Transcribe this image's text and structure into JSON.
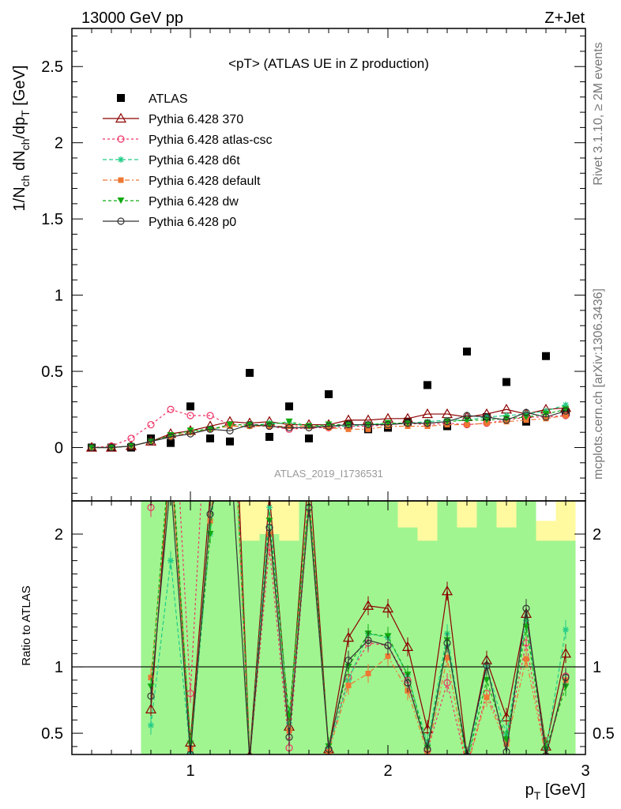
{
  "header": {
    "left": "13000 GeV pp",
    "right": "Z+Jet",
    "title": "<pT> (ATLAS UE in Z production)",
    "rivet": "Rivet 3.1.10, ≥ 2M events",
    "mcplots": "mcplots.cern.ch [arXiv:1306.3436]",
    "analysis": "ATLAS_2019_I1736531"
  },
  "chart_data": [
    {
      "type": "line",
      "ylabel": "1/N_ch dN_ch/dp_T [GeV]",
      "xlabel": "p_T [GeV]",
      "xlim": [
        0.4,
        3.0
      ],
      "ylim": [
        -0.35,
        2.75
      ],
      "yticks": [
        "0",
        "0.5",
        "1",
        "1.5",
        "2",
        "2.5"
      ],
      "legend_position": "top-left",
      "x": [
        0.5,
        0.6,
        0.7,
        0.8,
        0.9,
        1.0,
        1.1,
        1.2,
        1.3,
        1.4,
        1.5,
        1.6,
        1.7,
        1.8,
        1.9,
        2.0,
        2.1,
        2.2,
        2.3,
        2.4,
        2.5,
        2.6,
        2.7,
        2.8,
        2.9
      ],
      "series": [
        {
          "name": "ATLAS",
          "color": "#000000",
          "marker": "square",
          "dash": "none",
          "values": [
            0.0,
            0.0,
            0.0,
            0.06,
            0.03,
            0.27,
            0.06,
            0.04,
            0.49,
            0.07,
            0.27,
            0.06,
            0.35,
            0.15,
            0.12,
            0.13,
            0.17,
            0.41,
            0.14,
            0.63,
            0.2,
            0.43,
            0.17,
            0.6,
            0.23
          ]
        },
        {
          "name": "Pythia 6.428 370",
          "color": "#8b0000",
          "marker": "triangle",
          "dash": "none",
          "values": [
            0.0,
            0.0,
            0.01,
            0.04,
            0.09,
            0.11,
            0.14,
            0.17,
            0.16,
            0.17,
            0.15,
            0.15,
            0.15,
            0.18,
            0.18,
            0.19,
            0.19,
            0.22,
            0.22,
            0.2,
            0.22,
            0.25,
            0.22,
            0.25,
            0.26
          ]
        },
        {
          "name": "Pythia 6.428 atlas-csc",
          "color": "#ee3366",
          "marker": "circle-open",
          "dash": "3,3",
          "values": [
            0.0,
            0.01,
            0.06,
            0.15,
            0.25,
            0.21,
            0.21,
            0.15,
            0.15,
            0.14,
            0.12,
            0.13,
            0.13,
            0.14,
            0.14,
            0.15,
            0.16,
            0.15,
            0.16,
            0.15,
            0.16,
            0.18,
            0.2,
            0.2,
            0.21
          ]
        },
        {
          "name": "Pythia 6.428 d6t",
          "color": "#22cc88",
          "marker": "star",
          "dash": "5,3",
          "values": [
            0.0,
            0.0,
            0.01,
            0.04,
            0.07,
            0.1,
            0.12,
            0.14,
            0.14,
            0.16,
            0.16,
            0.14,
            0.14,
            0.14,
            0.15,
            0.16,
            0.16,
            0.17,
            0.18,
            0.18,
            0.2,
            0.21,
            0.22,
            0.24,
            0.28
          ]
        },
        {
          "name": "Pythia 6.428 default",
          "color": "#ee7733",
          "marker": "square-small",
          "dash": "6,3,2,3",
          "values": [
            0.0,
            0.0,
            0.01,
            0.04,
            0.07,
            0.1,
            0.12,
            0.14,
            0.14,
            0.14,
            0.14,
            0.14,
            0.13,
            0.12,
            0.12,
            0.14,
            0.14,
            0.14,
            0.15,
            0.15,
            0.16,
            0.17,
            0.18,
            0.19,
            0.21
          ]
        },
        {
          "name": "Pythia 6.428 dw",
          "color": "#11aa11",
          "marker": "triangle-down",
          "dash": "4,3",
          "values": [
            0.0,
            0.0,
            0.01,
            0.04,
            0.08,
            0.11,
            0.12,
            0.15,
            0.15,
            0.15,
            0.17,
            0.14,
            0.15,
            0.15,
            0.15,
            0.16,
            0.16,
            0.16,
            0.17,
            0.18,
            0.18,
            0.19,
            0.2,
            0.22,
            0.25
          ]
        },
        {
          "name": "Pythia 6.428 p0",
          "color": "#333333",
          "marker": "circle-open",
          "dash": "none",
          "values": [
            0.0,
            0.0,
            0.01,
            0.04,
            0.07,
            0.09,
            0.12,
            0.11,
            0.15,
            0.14,
            0.13,
            0.13,
            0.14,
            0.15,
            0.15,
            0.15,
            0.16,
            0.16,
            0.17,
            0.21,
            0.2,
            0.18,
            0.23,
            0.2,
            0.24
          ]
        }
      ]
    },
    {
      "type": "line",
      "ylabel": "Ratio to ATLAS",
      "xlabel": "p_T [GeV]",
      "xlim": [
        0.4,
        3.0
      ],
      "ylim": [
        0.34,
        2.25
      ],
      "yticks": [
        "0.5",
        "1",
        "2"
      ],
      "xticks": [
        "1",
        "2",
        "3"
      ],
      "reference_line": 1,
      "band_colors": {
        "inner": "#a0f590",
        "outer": "#fffaa0"
      },
      "bands": {
        "x": [
          0.8,
          0.9,
          1.0,
          1.1,
          1.2,
          1.3,
          1.4,
          1.5,
          1.6,
          1.7,
          1.8,
          1.9,
          2.0,
          2.1,
          2.2,
          2.3,
          2.4,
          2.5,
          2.6,
          2.7,
          2.8,
          2.9
        ],
        "inner_lo": [
          0.34,
          0.34,
          0.34,
          0.34,
          0.34,
          0.34,
          0.34,
          0.34,
          0.34,
          0.34,
          0.34,
          0.34,
          0.34,
          0.34,
          0.34,
          0.34,
          0.34,
          0.34,
          0.34,
          0.34,
          0.34,
          0.34
        ],
        "inner_hi": [
          2.25,
          2.25,
          2.25,
          2.25,
          2.25,
          1.95,
          2.0,
          1.95,
          2.25,
          2.25,
          2.25,
          2.25,
          2.25,
          2.05,
          1.95,
          2.25,
          2.05,
          2.25,
          2.05,
          2.25,
          1.95,
          1.95
        ],
        "outer_hi": [
          2.25,
          2.25,
          2.1,
          2.25,
          2.25,
          2.25,
          2.25,
          2.25,
          2.25,
          2.25,
          2.25,
          2.25,
          2.25,
          2.25,
          2.25,
          2.25,
          2.25,
          2.25,
          2.25,
          2.25,
          2.1,
          2.25
        ],
        "outer_lo": [
          0.34,
          0.34,
          0.34,
          0.34,
          0.34,
          0.34,
          0.34,
          0.34,
          0.34,
          0.34,
          0.34,
          0.34,
          0.34,
          0.34,
          0.34,
          0.34,
          0.34,
          0.34,
          0.34,
          0.34,
          0.34,
          0.34
        ]
      },
      "x": [
        0.8,
        0.9,
        1.0,
        1.1,
        1.2,
        1.3,
        1.4,
        1.5,
        1.6,
        1.7,
        1.8,
        1.9,
        2.0,
        2.1,
        2.2,
        2.3,
        2.4,
        2.5,
        2.6,
        2.7,
        2.8,
        2.9
      ],
      "series": [
        {
          "name": "Pythia 6.428 370",
          "color": "#8b0000",
          "marker": "triangle",
          "dash": "none",
          "values": [
            0.68,
            2.6,
            0.43,
            2.3,
            4.0,
            0.33,
            2.3,
            0.55,
            2.5,
            0.38,
            1.22,
            1.46,
            1.44,
            1.15,
            0.53,
            1.57,
            0.32,
            1.05,
            0.62,
            1.4,
            0.4,
            1.1
          ]
        },
        {
          "name": "Pythia 6.428 atlas-csc",
          "color": "#ee3366",
          "marker": "circle-open",
          "dash": "3,3",
          "values": [
            2.2,
            3.5,
            0.8,
            3.5,
            3.8,
            0.3,
            1.9,
            0.39,
            2.2,
            0.38,
            0.92,
            1.18,
            1.16,
            0.9,
            0.37,
            0.88,
            0.25,
            0.8,
            0.45,
            1.18,
            0.33,
            0.93
          ]
        },
        {
          "name": "Pythia 6.428 d6t",
          "color": "#22cc88",
          "marker": "star",
          "dash": "5,3",
          "values": [
            0.56,
            1.8,
            0.36,
            2.0,
            3.5,
            0.3,
            2.2,
            0.58,
            2.3,
            0.38,
            0.9,
            1.25,
            1.22,
            0.94,
            0.42,
            1.25,
            0.28,
            1.0,
            0.49,
            1.35,
            0.38,
            1.28
          ]
        },
        {
          "name": "Pythia 6.428 default",
          "color": "#ee7733",
          "marker": "square-small",
          "dash": "6,3,2,3",
          "values": [
            0.92,
            2.6,
            0.38,
            2.1,
            3.5,
            0.29,
            2.0,
            0.52,
            2.3,
            0.36,
            0.86,
            0.95,
            1.08,
            0.82,
            0.35,
            1.07,
            0.24,
            0.77,
            0.42,
            1.06,
            0.32,
            0.9
          ]
        },
        {
          "name": "Pythia 6.428 dw",
          "color": "#11aa11",
          "marker": "triangle-down",
          "dash": "4,3",
          "values": [
            0.85,
            2.7,
            0.42,
            2.0,
            3.7,
            0.3,
            2.1,
            0.63,
            2.3,
            0.4,
            1.0,
            1.25,
            1.23,
            0.94,
            0.39,
            1.2,
            0.28,
            0.9,
            0.45,
            1.3,
            0.38,
            0.85
          ]
        },
        {
          "name": "Pythia 6.428 p0",
          "color": "#333333",
          "marker": "circle-open",
          "dash": "none",
          "values": [
            0.78,
            2.4,
            0.34,
            2.15,
            2.7,
            0.3,
            2.05,
            0.47,
            2.2,
            0.38,
            1.05,
            1.2,
            1.16,
            0.88,
            0.38,
            1.18,
            0.33,
            1.01,
            0.36,
            1.44,
            0.33,
            0.92
          ]
        }
      ]
    }
  ]
}
